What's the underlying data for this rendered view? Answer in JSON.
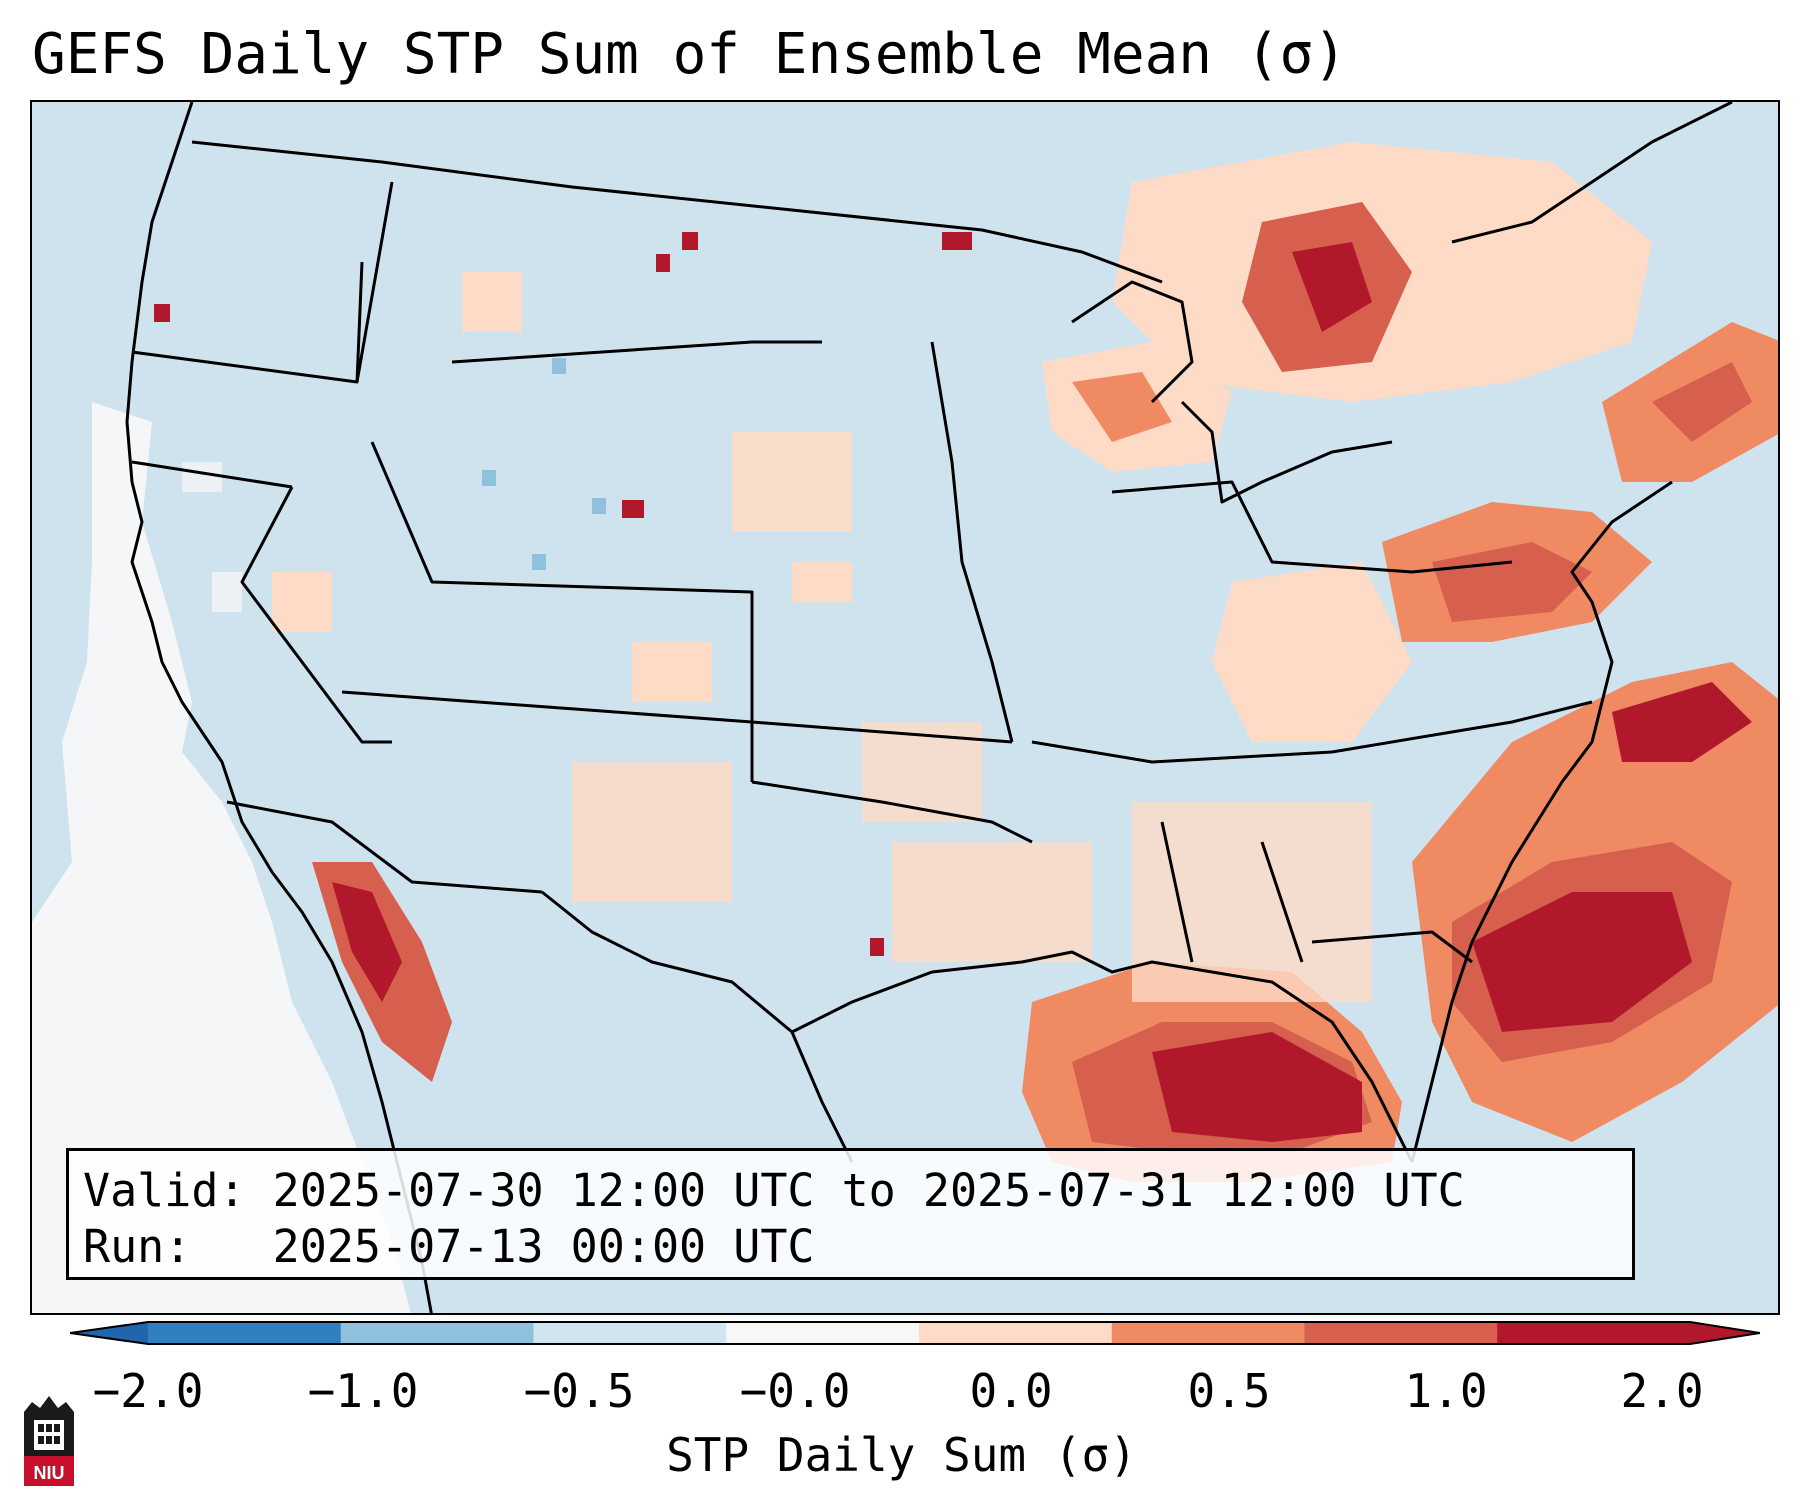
{
  "title": "GEFS Daily STP Sum of Ensemble Mean (σ)",
  "info": {
    "valid_label": "Valid:",
    "valid_value": "2025-07-30 12:00 UTC to 2025-07-31 12:00 UTC",
    "run_label": "Run:",
    "run_value": "2025-07-13 00:00 UTC"
  },
  "colorbar": {
    "label": "STP Daily Sum (σ)",
    "ticks": [
      "−2.0",
      "−1.0",
      "−0.5",
      "−0.0",
      "0.0",
      "0.5",
      "1.0",
      "2.0"
    ],
    "colors": [
      "#2f7fc1",
      "#8fc1de",
      "#d1e5f0",
      "#f7f7f7",
      "#fddbc7",
      "#ef8a62",
      "#d6604d",
      "#b2182b"
    ],
    "under_color": "#2166ac",
    "over_color": "#b2182b"
  },
  "map": {
    "background_color": "#cfe3ef",
    "anomaly_regions": [
      {
        "name": "southeast-atlantic",
        "level": "high"
      },
      {
        "name": "gulf-of-mexico",
        "level": "high"
      },
      {
        "name": "northeast",
        "level": "medium"
      },
      {
        "name": "ontario-quebec",
        "level": "medium"
      },
      {
        "name": "gulf-of-california",
        "level": "high"
      },
      {
        "name": "pacific-offshore",
        "level": "near-zero"
      }
    ]
  },
  "logo": {
    "text": "NIU"
  }
}
